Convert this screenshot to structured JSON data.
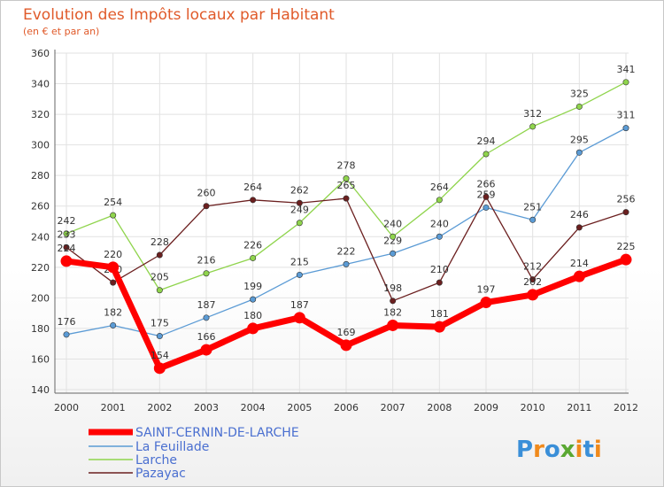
{
  "chart_data": {
    "type": "line",
    "title": "Evolution des Impôts locaux par Habitant",
    "subtitle": "(en € et par an)",
    "x": [
      "2000",
      "2001",
      "2002",
      "2003",
      "2004",
      "2005",
      "2006",
      "2007",
      "2008",
      "2009",
      "2010",
      "2011",
      "2012"
    ],
    "ylim": [
      140,
      360
    ],
    "yticks": [
      140,
      160,
      180,
      200,
      220,
      240,
      260,
      280,
      300,
      320,
      340,
      360
    ],
    "series": [
      {
        "name": "La Feuillade",
        "color": "#5b9bd5",
        "values": [
          176,
          182,
          175,
          187,
          199,
          215,
          222,
          229,
          240,
          259,
          251,
          295,
          311
        ]
      },
      {
        "name": "Larche",
        "color": "#8fd44c",
        "values": [
          242,
          254,
          205,
          216,
          226,
          249,
          278,
          240,
          264,
          294,
          312,
          325,
          341
        ]
      },
      {
        "name": "Pazayac",
        "color": "#6b1f1f",
        "values": [
          233,
          210,
          228,
          260,
          264,
          262,
          265,
          198,
          210,
          266,
          212,
          246,
          256
        ]
      },
      {
        "name": "SAINT-CERNIN-DE-LARCHE",
        "color": "#ff0000",
        "values": [
          224,
          220,
          154,
          166,
          180,
          187,
          169,
          182,
          181,
          197,
          202,
          214,
          225
        ]
      }
    ],
    "legend": [
      "SAINT-CERNIN-DE-LARCHE",
      "La Feuillade",
      "Larche",
      "Pazayac"
    ]
  },
  "logo": {
    "text": "Proxiti"
  }
}
